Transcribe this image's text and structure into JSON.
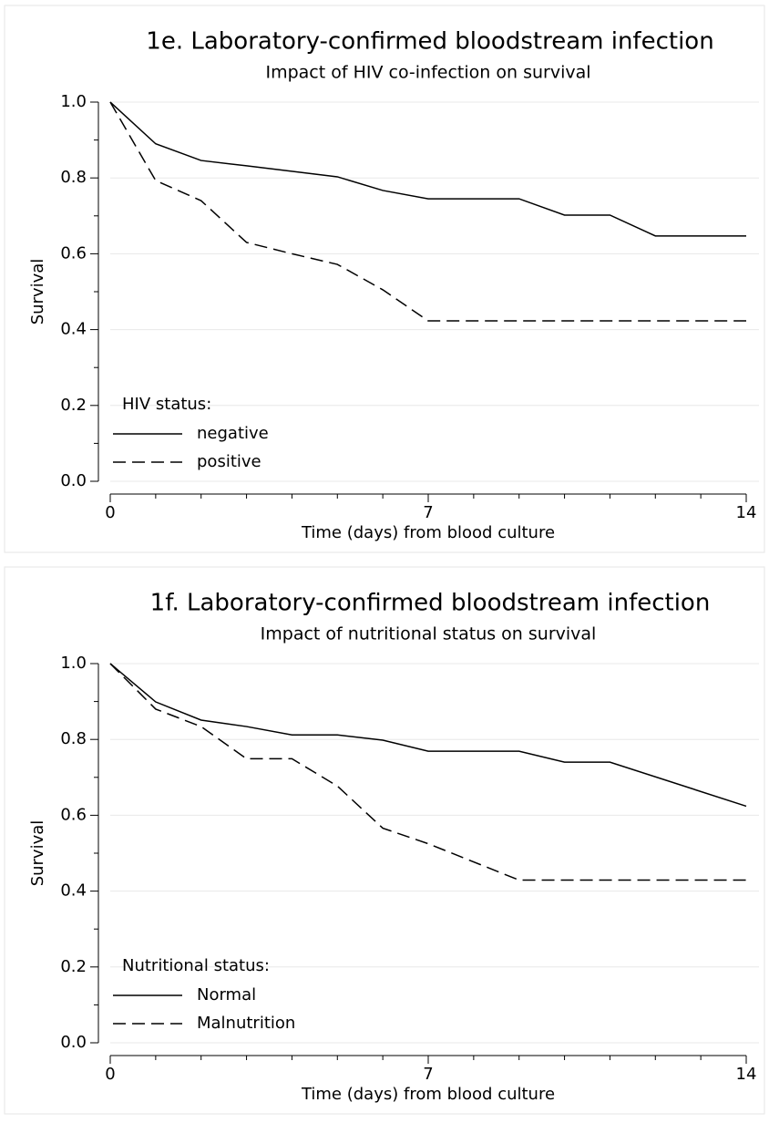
{
  "chart_data": [
    {
      "type": "line",
      "title": "1e.  Laboratory-confirmed bloodstream infection",
      "subtitle": "Impact of HIV co-infection on survival",
      "x_label": "Time (days) from blood culture",
      "y_label": "Survival",
      "xlim": [
        0,
        14
      ],
      "xticks": [
        0,
        7,
        14
      ],
      "xminorticks": [
        1,
        2,
        3,
        4,
        5,
        6,
        8,
        9,
        10,
        11,
        12,
        13
      ],
      "ylim": [
        0,
        1
      ],
      "yticks": [
        {
          "value": 0,
          "label": "0.0"
        },
        0.2,
        0.4,
        0.6,
        0.8,
        {
          "value": 1,
          "label": "1.0"
        }
      ],
      "yminorticks": [
        0.1,
        0.3,
        0.5,
        0.7,
        0.9
      ],
      "grid": true,
      "legend_title": "HIV status:",
      "legend": "lower left",
      "series": [
        {
          "name": "negative",
          "color": "#000000",
          "style": "solid",
          "x": [
            0,
            1,
            2,
            3,
            5,
            6,
            7,
            9,
            10,
            11,
            12,
            14
          ],
          "values": [
            1.0,
            0.89,
            0.846,
            0.832,
            0.803,
            0.767,
            0.745,
            0.745,
            0.702,
            0.702,
            0.647,
            0.647
          ]
        },
        {
          "name": "positive",
          "color": "#000000",
          "style": "dashed",
          "x": [
            0,
            1,
            2,
            3,
            4,
            5,
            6,
            7,
            14
          ],
          "values": [
            1.0,
            0.793,
            0.74,
            0.63,
            0.6,
            0.572,
            0.505,
            0.423,
            0.423
          ]
        }
      ]
    },
    {
      "type": "line",
      "title": "1f.  Laboratory-confirmed bloodstream infection",
      "subtitle": "Impact of nutritional status on survival",
      "x_label": "Time (days) from blood culture",
      "y_label": "Survival",
      "xlim": [
        0,
        14
      ],
      "xticks": [
        0,
        7,
        14
      ],
      "xminorticks": [
        1,
        2,
        3,
        4,
        5,
        6,
        8,
        9,
        10,
        11,
        12,
        13
      ],
      "ylim": [
        0,
        1
      ],
      "yticks": [
        {
          "value": 0,
          "label": "0.0"
        },
        0.2,
        0.4,
        0.6,
        0.8,
        {
          "value": 1,
          "label": "1.0"
        }
      ],
      "yminorticks": [
        0.1,
        0.3,
        0.5,
        0.7,
        0.9
      ],
      "grid": true,
      "legend_title": "Nutritional status:",
      "legend": "lower left",
      "series": [
        {
          "name": "Normal",
          "color": "#000000",
          "style": "solid",
          "x": [
            0,
            1,
            2,
            3,
            4,
            5,
            6,
            7,
            9,
            10,
            11,
            14
          ],
          "values": [
            1.0,
            0.899,
            0.851,
            0.834,
            0.812,
            0.812,
            0.798,
            0.769,
            0.769,
            0.74,
            0.74,
            0.624
          ]
        },
        {
          "name": "Malnutrition",
          "color": "#000000",
          "style": "dashed",
          "x": [
            0,
            1,
            2,
            3,
            4,
            5,
            6,
            7,
            9,
            14
          ],
          "values": [
            1.0,
            0.88,
            0.834,
            0.749,
            0.749,
            0.677,
            0.566,
            0.525,
            0.429,
            0.429
          ]
        }
      ]
    }
  ]
}
